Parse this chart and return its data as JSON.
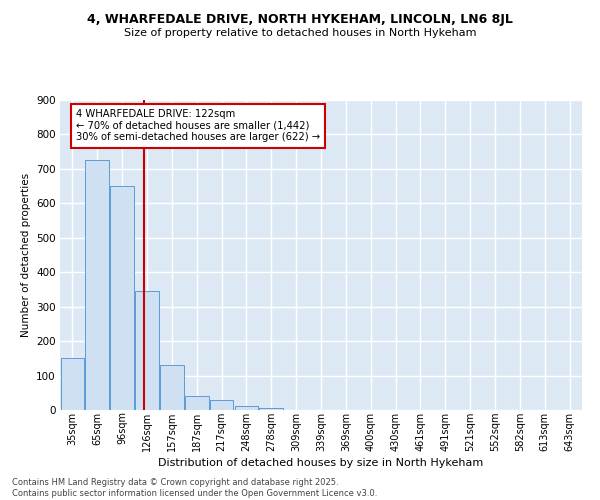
{
  "title": "4, WHARFEDALE DRIVE, NORTH HYKEHAM, LINCOLN, LN6 8JL",
  "subtitle": "Size of property relative to detached houses in North Hykeham",
  "xlabel": "Distribution of detached houses by size in North Hykeham",
  "ylabel": "Number of detached properties",
  "bar_categories": [
    "35sqm",
    "65sqm",
    "96sqm",
    "126sqm",
    "157sqm",
    "187sqm",
    "217sqm",
    "248sqm",
    "278sqm",
    "309sqm",
    "339sqm",
    "369sqm",
    "400sqm",
    "430sqm",
    "461sqm",
    "491sqm",
    "521sqm",
    "552sqm",
    "582sqm",
    "613sqm",
    "643sqm"
  ],
  "bar_values": [
    150,
    725,
    650,
    345,
    132,
    42,
    30,
    12,
    5,
    0,
    0,
    0,
    0,
    0,
    0,
    0,
    0,
    0,
    0,
    0,
    0
  ],
  "bar_color": "#cfe0f2",
  "bar_edge_color": "#5b9bd5",
  "vline_x": 2.88,
  "vline_color": "#cc0000",
  "annotation_title": "4 WHARFEDALE DRIVE: 122sqm",
  "annotation_line1": "← 70% of detached houses are smaller (1,442)",
  "annotation_line2": "30% of semi-detached houses are larger (622) →",
  "annotation_box_color": "#cc0000",
  "ylim": [
    0,
    900
  ],
  "yticks": [
    0,
    100,
    200,
    300,
    400,
    500,
    600,
    700,
    800,
    900
  ],
  "background_color": "#dce9f5",
  "grid_color": "#ffffff",
  "footer_line1": "Contains HM Land Registry data © Crown copyright and database right 2025.",
  "footer_line2": "Contains public sector information licensed under the Open Government Licence v3.0."
}
